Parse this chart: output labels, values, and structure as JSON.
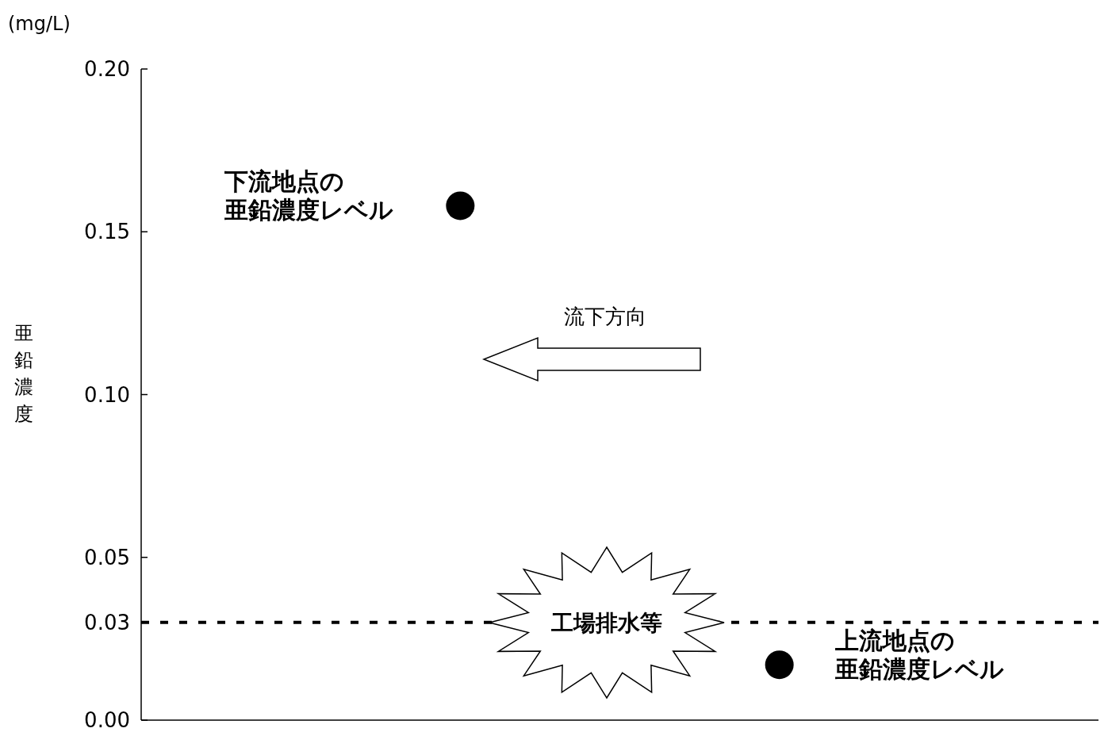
{
  "chart_data": {
    "type": "scatter",
    "ylabel": "亜鉛濃度",
    "categories": [
      null,
      null
    ],
    "series": [
      {
        "color": "#000000",
        "values": [
          0.158,
          0.017
        ]
      }
    ],
    "marker": "circle",
    "ylim": [
      0,
      0.2
    ],
    "yticks": [
      {
        "value": 0,
        "label": "0.00"
      },
      {
        "value": 0.03,
        "label": "0.03"
      },
      {
        "value": 0.05,
        "label": "0.05"
      },
      {
        "value": 0.1,
        "label": "0.10"
      },
      {
        "value": 0.15,
        "label": "0.15"
      },
      {
        "value": 0.2,
        "label": "0.20"
      }
    ],
    "tick_labels": "y",
    "ref_lines": [
      {
        "axis": "y",
        "value": 0.03,
        "color": "#000000",
        "line_style": "dashed"
      }
    ],
    "annotations": [
      "(mg/L)",
      "流下方向",
      "工場排水等",
      "下流地点の亜鉛濃度レベル",
      "上流地点の亜鉛濃度レベル"
    ],
    "grid": false
  }
}
